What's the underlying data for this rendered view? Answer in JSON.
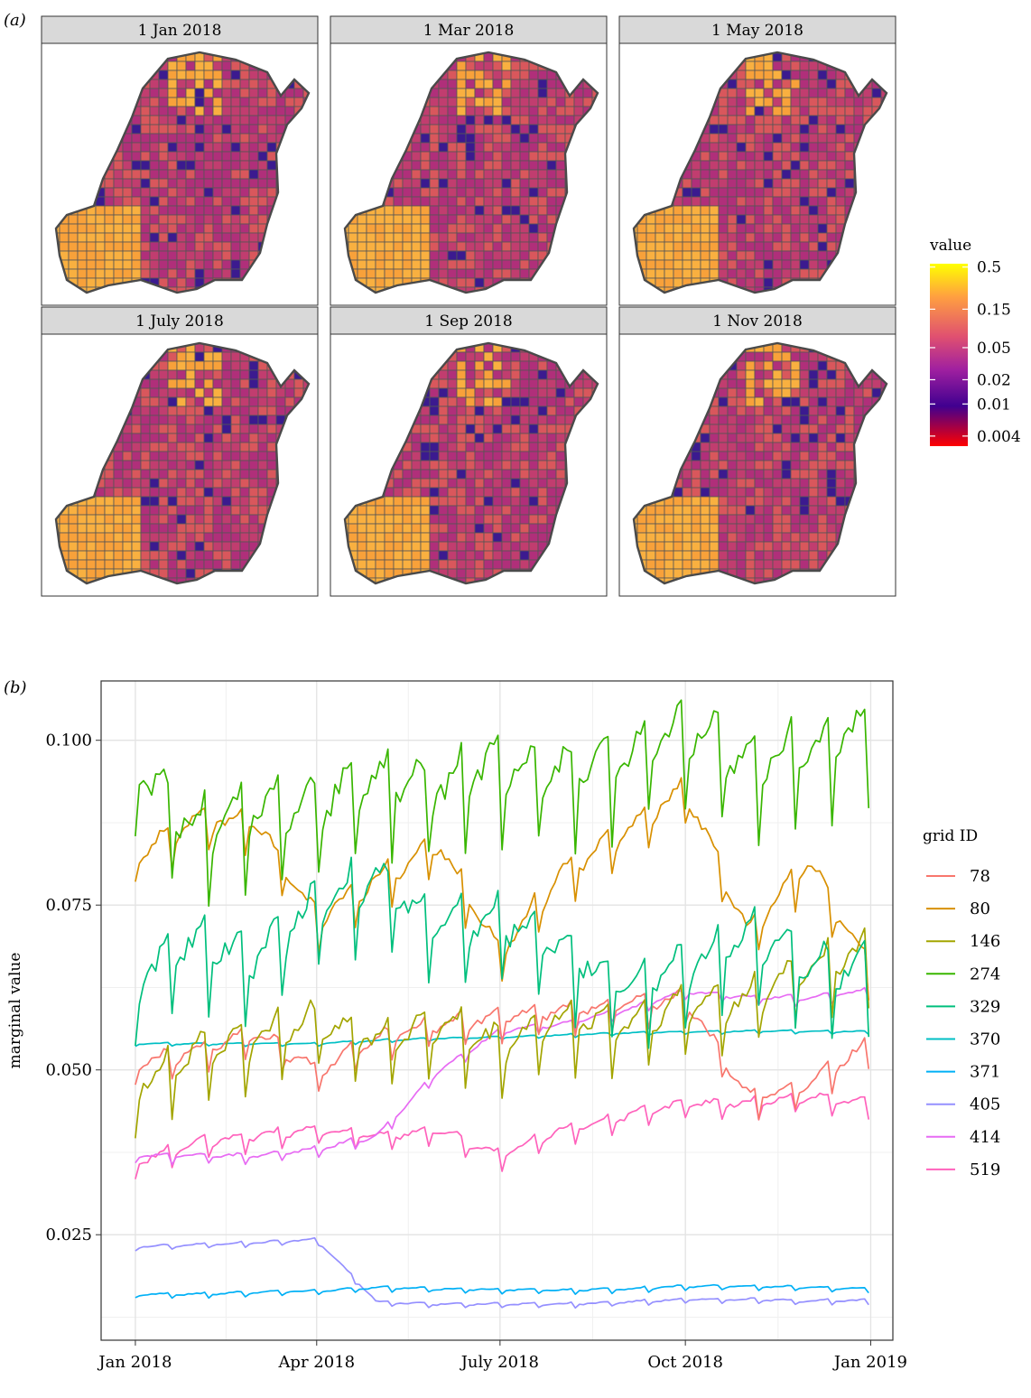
{
  "panel_a": {
    "label": "(a)",
    "facets": [
      "1 Jan 2018",
      "1 Mar 2018",
      "1 May 2018",
      "1 July 2018",
      "1 Sep 2018",
      "1 Nov 2018"
    ],
    "legend": {
      "title": "value",
      "ticks": [
        "0.5",
        "0.15",
        "0.05",
        "0.02",
        "0.01",
        "0.004"
      ],
      "ticks_numeric": [
        0.5,
        0.15,
        0.05,
        0.02,
        0.01,
        0.004
      ],
      "scale": "log",
      "colors": [
        "#ffff00",
        "#ffa040",
        "#e05070",
        "#a020a0",
        "#400090",
        "#ff0000"
      ]
    }
  },
  "panel_b": {
    "label": "(b)",
    "legend_title": "grid ID",
    "chart_data": {
      "type": "line",
      "ylabel": "marginal value",
      "xlabel": "",
      "x_ticks": [
        "Jan 2018",
        "Apr 2018",
        "July 2018",
        "Oct 2018",
        "Jan 2019"
      ],
      "x_tick_dates": [
        "2018-01-01",
        "2018-04-01",
        "2018-07-01",
        "2018-10-01",
        "2019-01-01"
      ],
      "y_ticks": [
        "0.025",
        "0.050",
        "0.075",
        "0.100"
      ],
      "xlim": [
        "2017-12-15",
        "2019-01-12"
      ],
      "ylim": [
        0.009,
        0.109
      ],
      "grid": true,
      "legend_position": "right",
      "x": [
        "2018-01-01",
        "2018-02-01",
        "2018-03-01",
        "2018-04-01",
        "2018-05-01",
        "2018-06-01",
        "2018-07-01",
        "2018-08-01",
        "2018-09-01",
        "2018-10-01",
        "2018-11-01",
        "2018-12-01",
        "2018-12-31"
      ],
      "series": [
        {
          "name": "78",
          "color": "#f8766d",
          "values": [
            0.051,
            0.053,
            0.056,
            0.05,
            0.055,
            0.057,
            0.058,
            0.059,
            0.06,
            0.061,
            0.046,
            0.048,
            0.054
          ]
        },
        {
          "name": "80",
          "color": "#d89000",
          "values": [
            0.083,
            0.088,
            0.088,
            0.073,
            0.079,
            0.084,
            0.068,
            0.08,
            0.086,
            0.093,
            0.071,
            0.082,
            0.066
          ]
        },
        {
          "name": "146",
          "color": "#a3a500",
          "values": [
            0.048,
            0.053,
            0.055,
            0.058,
            0.055,
            0.057,
            0.054,
            0.058,
            0.057,
            0.06,
            0.061,
            0.066,
            0.068
          ]
        },
        {
          "name": "274",
          "color": "#39b600",
          "values": [
            0.096,
            0.087,
            0.09,
            0.091,
            0.095,
            0.093,
            0.097,
            0.096,
            0.098,
            0.103,
            0.097,
            0.099,
            0.103
          ]
        },
        {
          "name": "329",
          "color": "#00bf7d",
          "values": [
            0.064,
            0.07,
            0.067,
            0.076,
            0.079,
            0.072,
            0.073,
            0.069,
            0.063,
            0.066,
            0.071,
            0.066,
            0.066
          ]
        },
        {
          "name": "370",
          "color": "#00bfc4",
          "values": [
            0.054,
            0.054,
            0.054,
            0.054,
            0.0545,
            0.0548,
            0.055,
            0.0553,
            0.0556,
            0.0558,
            0.0559,
            0.0559,
            0.0558
          ]
        },
        {
          "name": "371",
          "color": "#00b0f6",
          "values": [
            0.016,
            0.016,
            0.0163,
            0.0165,
            0.017,
            0.0168,
            0.0167,
            0.0166,
            0.0168,
            0.0172,
            0.0172,
            0.0171,
            0.0168
          ]
        },
        {
          "name": "405",
          "color": "#9590ff",
          "values": [
            0.0232,
            0.0235,
            0.0238,
            0.0243,
            0.0148,
            0.0145,
            0.0145,
            0.0145,
            0.0148,
            0.0152,
            0.0152,
            0.015,
            0.015
          ]
        },
        {
          "name": "414",
          "color": "#e76bf3",
          "values": [
            0.037,
            0.037,
            0.037,
            0.038,
            0.04,
            0.05,
            0.056,
            0.057,
            0.059,
            0.062,
            0.061,
            0.061,
            0.062
          ]
        },
        {
          "name": "519",
          "color": "#ff62bc",
          "values": [
            0.036,
            0.039,
            0.04,
            0.041,
            0.04,
            0.041,
            0.037,
            0.041,
            0.043,
            0.045,
            0.045,
            0.046,
            0.045
          ]
        }
      ]
    }
  }
}
